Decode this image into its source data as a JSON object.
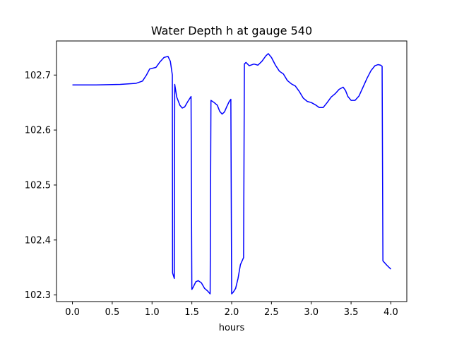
{
  "chart_data": {
    "type": "line",
    "title": "Water Depth h at gauge 540",
    "xlabel": "hours",
    "ylabel": "",
    "xlim": [
      -0.2,
      4.2
    ],
    "ylim": [
      102.288,
      102.762
    ],
    "grid": false,
    "x_ticks": [
      0.0,
      0.5,
      1.0,
      1.5,
      2.0,
      2.5,
      3.0,
      3.5,
      4.0
    ],
    "x_tick_labels": [
      "0.0",
      "0.5",
      "1.0",
      "1.5",
      "2.0",
      "2.5",
      "3.0",
      "3.5",
      "4.0"
    ],
    "y_ticks": [
      102.3,
      102.4,
      102.5,
      102.6,
      102.7
    ],
    "y_tick_labels": [
      "102.3",
      "102.4",
      "102.5",
      "102.6",
      "102.7"
    ],
    "series": [
      {
        "color": "#0000ff",
        "points": [
          [
            0.0,
            102.682
          ],
          [
            0.3,
            102.682
          ],
          [
            0.6,
            102.683
          ],
          [
            0.8,
            102.685
          ],
          [
            0.88,
            102.689
          ],
          [
            0.93,
            102.7
          ],
          [
            0.97,
            102.711
          ],
          [
            1.05,
            102.714
          ],
          [
            1.1,
            102.724
          ],
          [
            1.15,
            102.732
          ],
          [
            1.2,
            102.734
          ],
          [
            1.23,
            102.725
          ],
          [
            1.255,
            102.7
          ],
          [
            1.258,
            102.34
          ],
          [
            1.28,
            102.33
          ],
          [
            1.285,
            102.683
          ],
          [
            1.31,
            102.66
          ],
          [
            1.35,
            102.645
          ],
          [
            1.38,
            102.64
          ],
          [
            1.41,
            102.642
          ],
          [
            1.45,
            102.652
          ],
          [
            1.49,
            102.661
          ],
          [
            1.5,
            102.31
          ],
          [
            1.52,
            102.315
          ],
          [
            1.55,
            102.324
          ],
          [
            1.58,
            102.326
          ],
          [
            1.62,
            102.322
          ],
          [
            1.66,
            102.312
          ],
          [
            1.7,
            102.307
          ],
          [
            1.73,
            102.302
          ],
          [
            1.74,
            102.654
          ],
          [
            1.78,
            102.65
          ],
          [
            1.82,
            102.645
          ],
          [
            1.85,
            102.634
          ],
          [
            1.88,
            102.629
          ],
          [
            1.91,
            102.633
          ],
          [
            1.94,
            102.643
          ],
          [
            1.97,
            102.652
          ],
          [
            1.99,
            102.656
          ],
          [
            2.0,
            102.302
          ],
          [
            2.02,
            102.305
          ],
          [
            2.05,
            102.312
          ],
          [
            2.08,
            102.33
          ],
          [
            2.11,
            102.355
          ],
          [
            2.15,
            102.368
          ],
          [
            2.16,
            102.72
          ],
          [
            2.18,
            102.723
          ],
          [
            2.22,
            102.717
          ],
          [
            2.28,
            102.72
          ],
          [
            2.33,
            102.718
          ],
          [
            2.38,
            102.725
          ],
          [
            2.43,
            102.735
          ],
          [
            2.46,
            102.739
          ],
          [
            2.5,
            102.732
          ],
          [
            2.55,
            102.718
          ],
          [
            2.6,
            102.707
          ],
          [
            2.65,
            102.702
          ],
          [
            2.7,
            102.69
          ],
          [
            2.75,
            102.684
          ],
          [
            2.8,
            102.68
          ],
          [
            2.85,
            102.67
          ],
          [
            2.9,
            102.658
          ],
          [
            2.95,
            102.652
          ],
          [
            3.0,
            102.65
          ],
          [
            3.05,
            102.646
          ],
          [
            3.1,
            102.641
          ],
          [
            3.15,
            102.641
          ],
          [
            3.2,
            102.65
          ],
          [
            3.25,
            102.66
          ],
          [
            3.3,
            102.666
          ],
          [
            3.35,
            102.674
          ],
          [
            3.4,
            102.678
          ],
          [
            3.43,
            102.672
          ],
          [
            3.46,
            102.661
          ],
          [
            3.5,
            102.654
          ],
          [
            3.55,
            102.654
          ],
          [
            3.6,
            102.662
          ],
          [
            3.65,
            102.678
          ],
          [
            3.7,
            102.694
          ],
          [
            3.75,
            102.708
          ],
          [
            3.8,
            102.717
          ],
          [
            3.84,
            102.719
          ],
          [
            3.87,
            102.718
          ],
          [
            3.89,
            102.716
          ],
          [
            3.9,
            102.362
          ],
          [
            3.95,
            102.354
          ],
          [
            4.0,
            102.347
          ]
        ]
      }
    ]
  }
}
